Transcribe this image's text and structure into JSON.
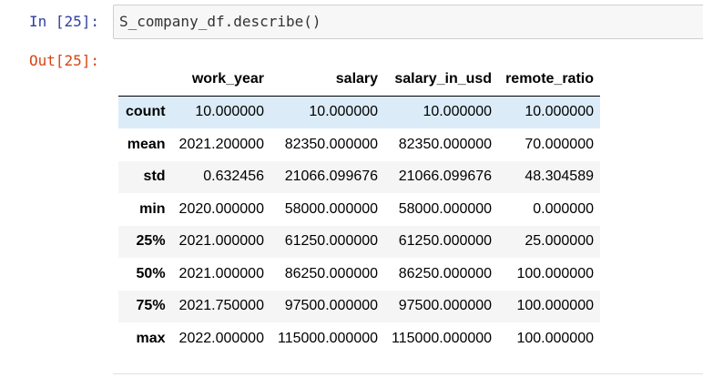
{
  "cell": {
    "in_prompt": "In [25]:",
    "code": "S_company_df.describe()",
    "out_prompt": "Out[25]:"
  },
  "table": {
    "columns": [
      "work_year",
      "salary",
      "salary_in_usd",
      "remote_ratio"
    ],
    "rows": [
      {
        "label": "count",
        "values": [
          "10.000000",
          "10.000000",
          "10.000000",
          "10.000000"
        ]
      },
      {
        "label": "mean",
        "values": [
          "2021.200000",
          "82350.000000",
          "82350.000000",
          "70.000000"
        ]
      },
      {
        "label": "std",
        "values": [
          "0.632456",
          "21066.099676",
          "21066.099676",
          "48.304589"
        ]
      },
      {
        "label": "min",
        "values": [
          "2020.000000",
          "58000.000000",
          "58000.000000",
          "0.000000"
        ]
      },
      {
        "label": "25%",
        "values": [
          "2021.000000",
          "61250.000000",
          "61250.000000",
          "25.000000"
        ]
      },
      {
        "label": "50%",
        "values": [
          "2021.000000",
          "86250.000000",
          "86250.000000",
          "100.000000"
        ]
      },
      {
        "label": "75%",
        "values": [
          "2021.750000",
          "97500.000000",
          "97500.000000",
          "100.000000"
        ]
      },
      {
        "label": "max",
        "values": [
          "2022.000000",
          "115000.000000",
          "115000.000000",
          "100.000000"
        ]
      }
    ]
  },
  "colors": {
    "in_prompt": "#303f9f",
    "out_prompt": "#d84315",
    "input_background": "#f7f7f7",
    "row_stripe": "#f5f5f5",
    "row_hover": "#dbecf8"
  }
}
